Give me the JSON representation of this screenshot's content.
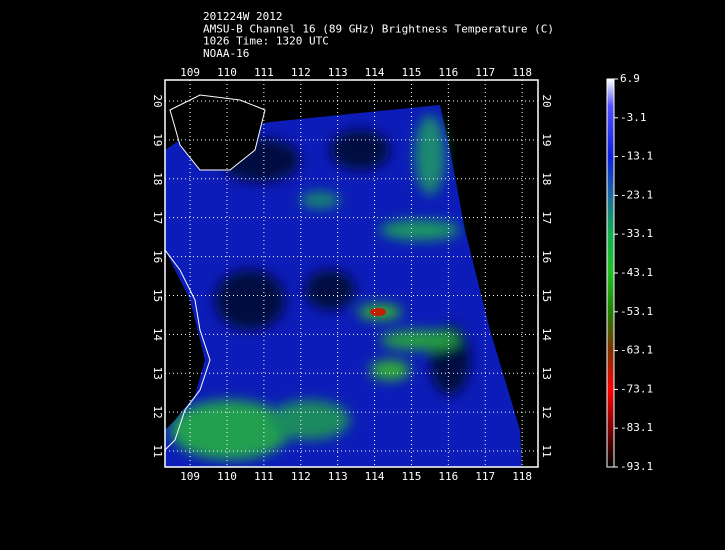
{
  "header": {
    "lines": [
      "201224W 2012",
      "AMSU-B Channel 16 (89 GHz) Brightness Temperature (C)",
      "1026 Time: 1320 UTC",
      "NOAA-16"
    ]
  },
  "map": {
    "xlim": [
      108.32,
      118.43
    ],
    "ylim": [
      10.59,
      20.54
    ],
    "xticks": [
      109,
      110,
      111,
      112,
      113,
      114,
      115,
      116,
      117,
      118
    ],
    "yticks": [
      11,
      12,
      13,
      14,
      15,
      16,
      17,
      18,
      19,
      20
    ]
  },
  "colorbar": {
    "lim": [
      -93.1,
      6.9
    ],
    "ticks": [
      6.9,
      -3.1,
      -13.1,
      -23.1,
      -33.1,
      -43.1,
      -53.1,
      -63.1,
      -73.1,
      -83.1,
      -93.1
    ]
  }
}
